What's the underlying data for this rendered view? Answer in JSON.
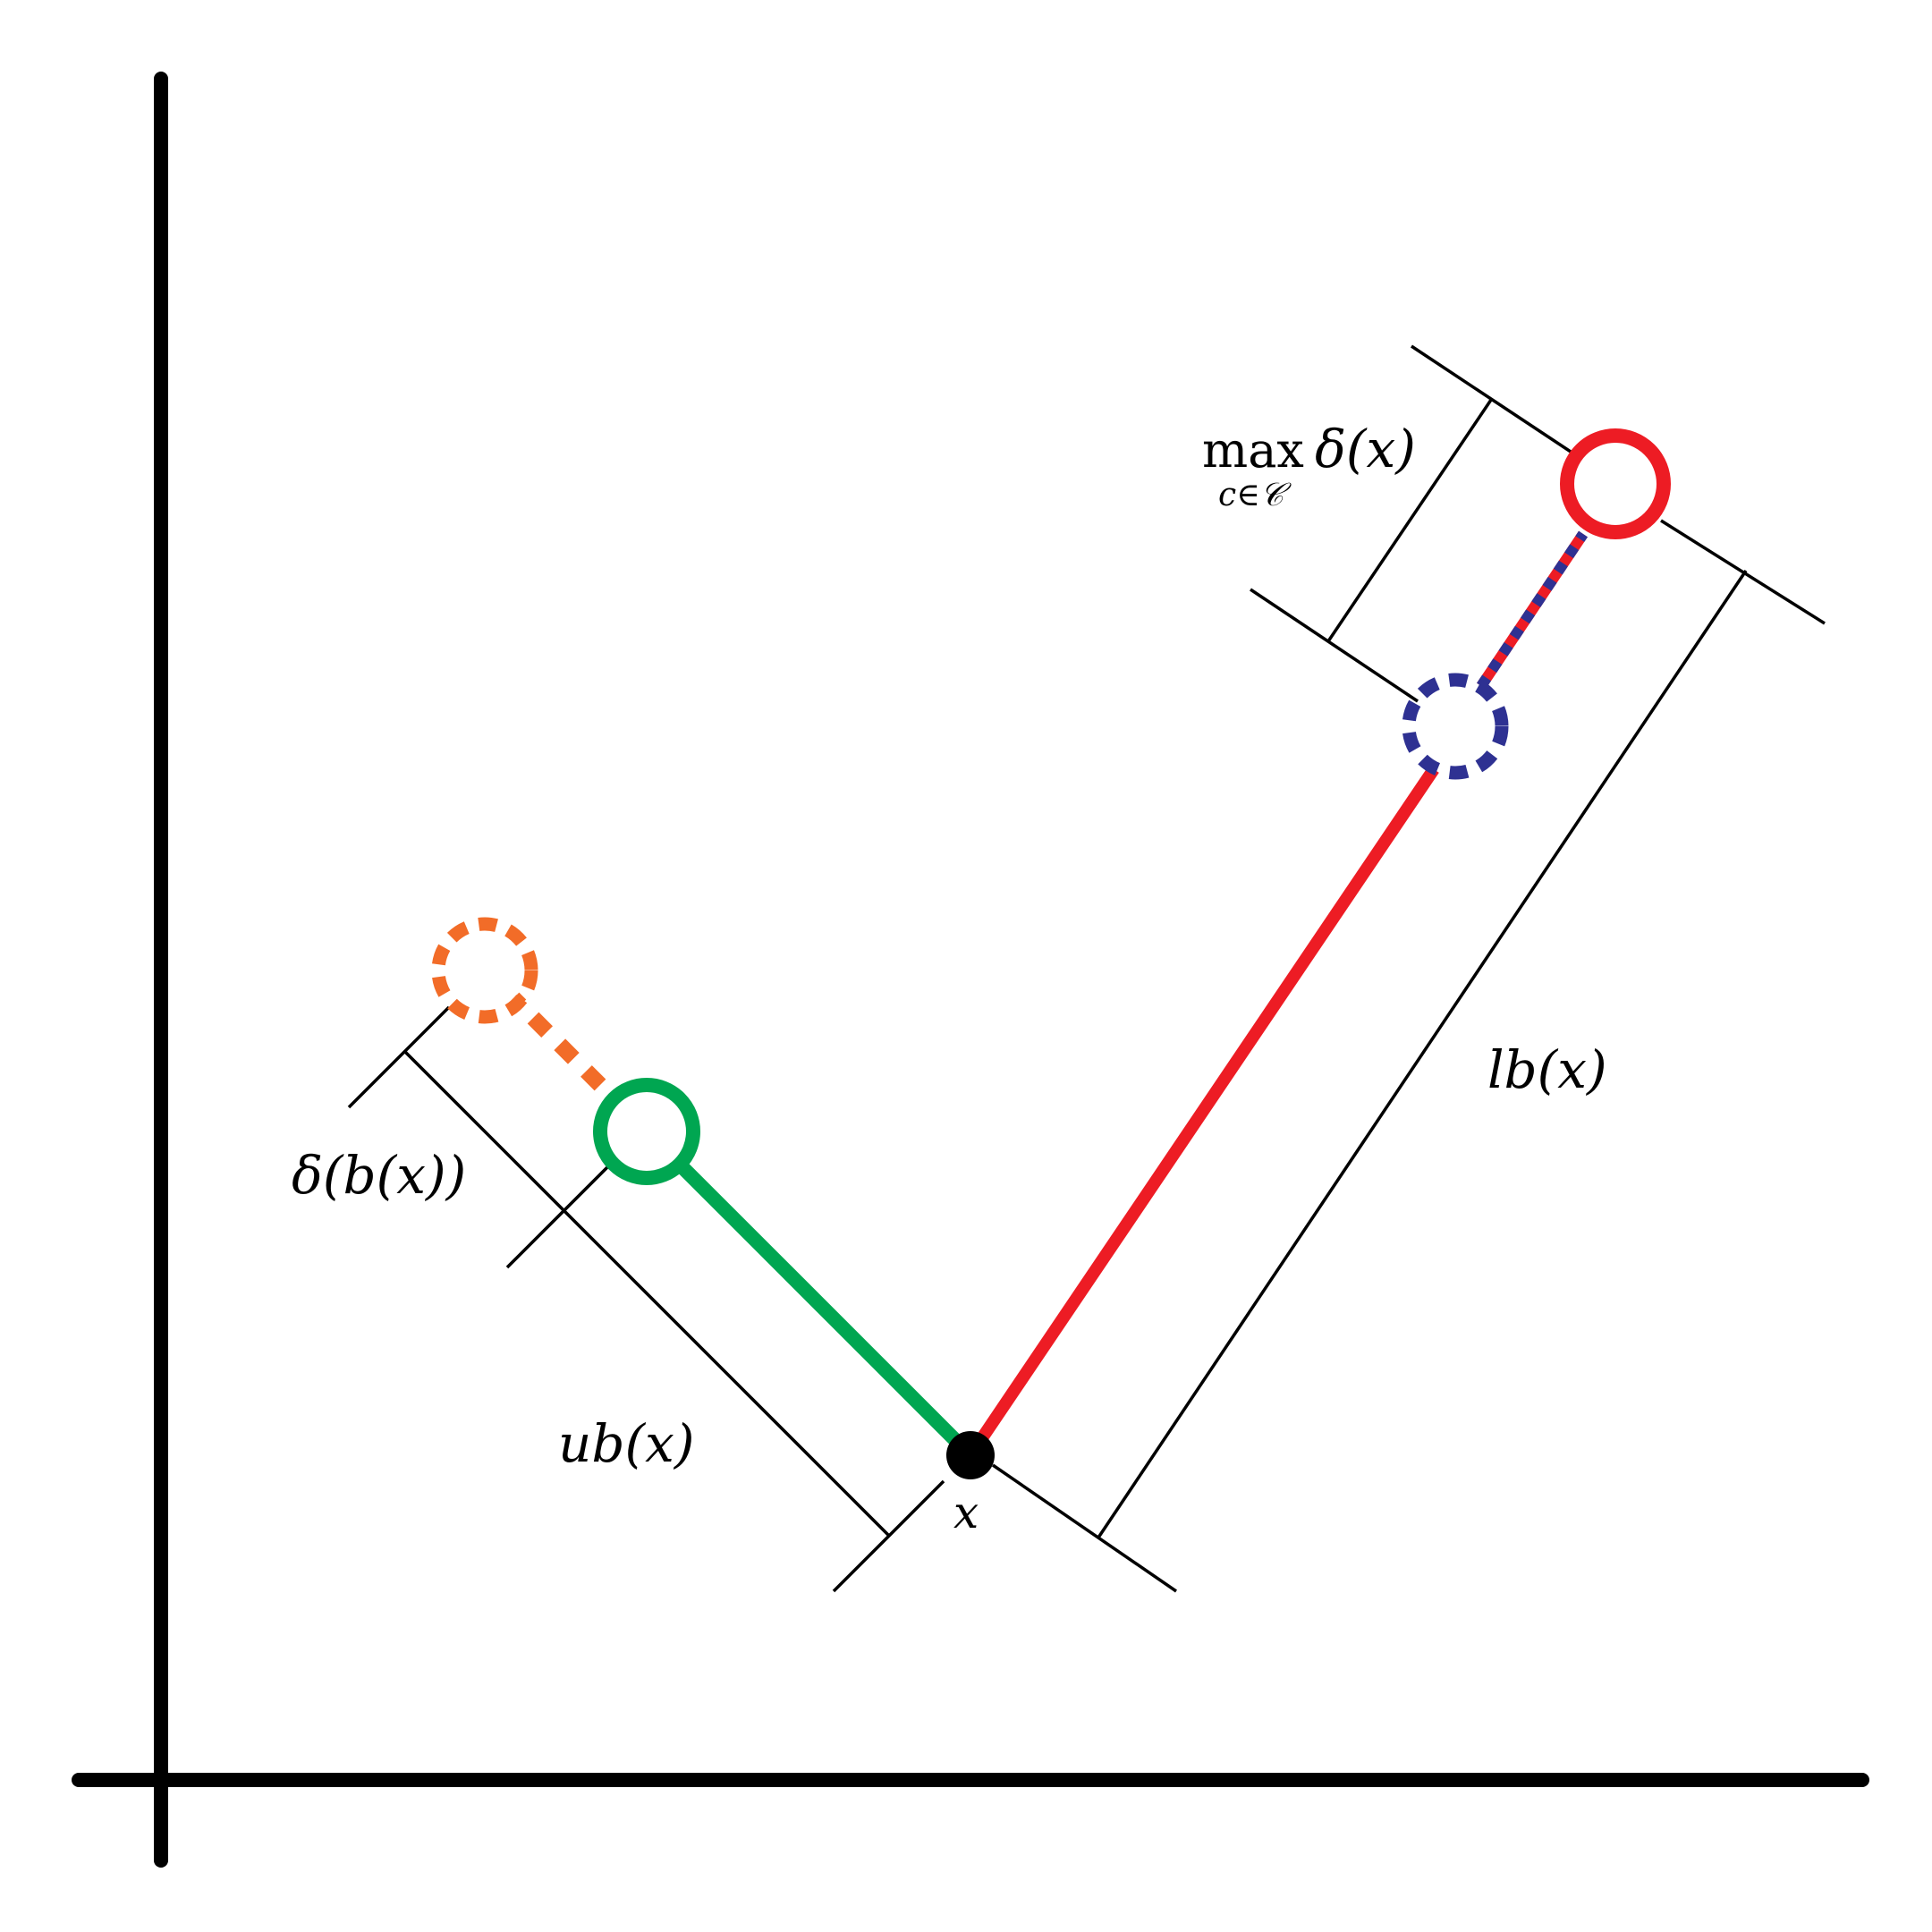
{
  "colors": {
    "axis": "#000000",
    "bracket": "#000000",
    "point_x": "#000000",
    "lower_bound_line": "#ed1c24",
    "center_max": "#ed1c24",
    "center_second": "#2e3192",
    "upper_bound_line": "#00a651",
    "center_assigned": "#00a651",
    "center_drift": "#f26c28"
  },
  "labels": {
    "x": "x",
    "ub": "ub(x)",
    "lb": "lb(x)",
    "delta_b": "δ(b(x))",
    "max_op": "max",
    "max_sub": "c∈𝒞",
    "max_delta": "δ(x)"
  },
  "icons": {
    "point_x": "filled-circle",
    "assigned_center": "hollow-circle",
    "moved_assigned_center": "dashed-circle",
    "farthest_center": "hollow-circle",
    "moved_farthest_center": "dashed-circle"
  }
}
